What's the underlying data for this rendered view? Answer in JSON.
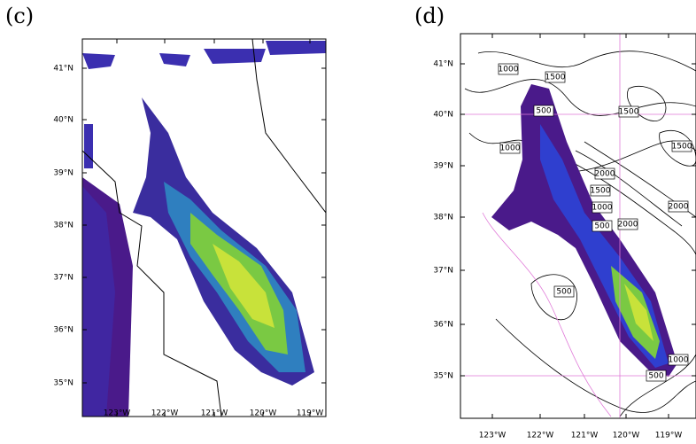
{
  "panels": [
    {
      "label": "(c)",
      "x_tick_labels": [
        "123°W",
        "122°W",
        "121°W",
        "120°W",
        "119°W"
      ],
      "y_tick_labels": [
        "41°N",
        "40°N",
        "39°N",
        "38°N",
        "37°N",
        "36°N",
        "35°N"
      ]
    },
    {
      "label": "(d)",
      "x_tick_labels": [
        "123°W",
        "122°W",
        "121°W",
        "120°W",
        "119°W"
      ],
      "y_tick_labels": [
        "41°N",
        "40°N",
        "39°N",
        "38°N",
        "37°N",
        "36°N",
        "35°N"
      ],
      "contour_labels": [
        "1000",
        "1500",
        "500",
        "1500",
        "1000",
        "1500",
        "2000",
        "1500",
        "1000",
        "500",
        "2000",
        "2000",
        "500",
        "1000",
        "500"
      ]
    }
  ]
}
